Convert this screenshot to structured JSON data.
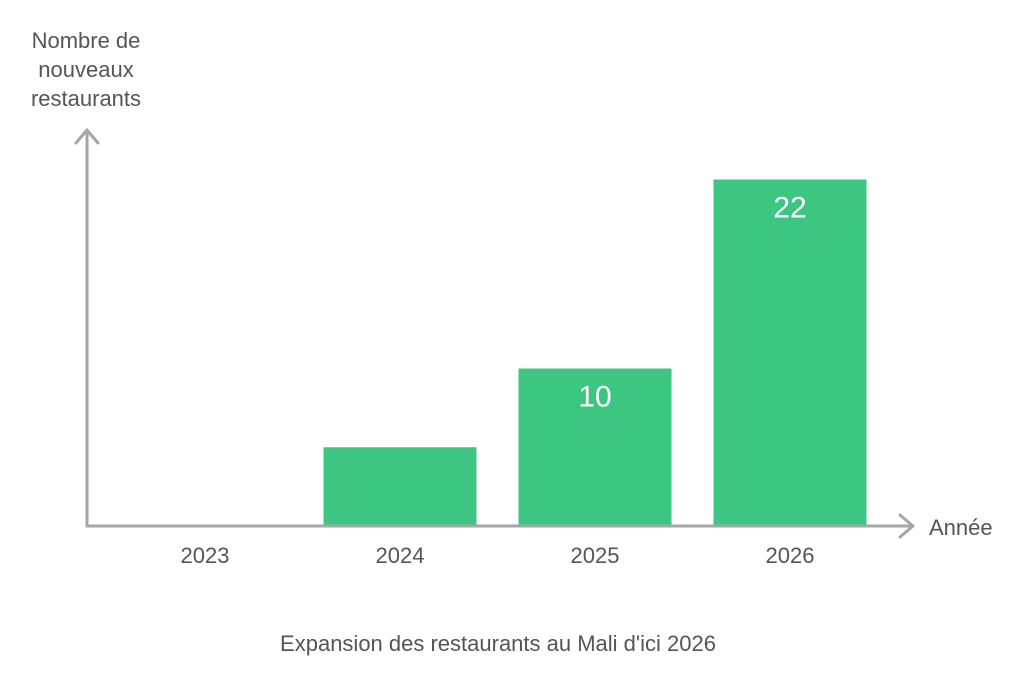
{
  "chart_data": {
    "type": "bar",
    "title": "Expansion des restaurants au Mali d'ici 2026",
    "xlabel": "Année",
    "ylabel": [
      "Nombre de",
      "nouveaux",
      "restaurants"
    ],
    "categories": [
      "2023",
      "2024",
      "2025",
      "2026"
    ],
    "values": [
      0,
      5,
      10,
      22
    ],
    "value_labels": [
      "",
      "",
      "10",
      "22"
    ],
    "ylim": [
      0,
      24
    ],
    "grid": false,
    "legend": "none",
    "bar_color": "#3cc682",
    "axis_color": "#a6a6a6",
    "text_color": "#555555"
  }
}
